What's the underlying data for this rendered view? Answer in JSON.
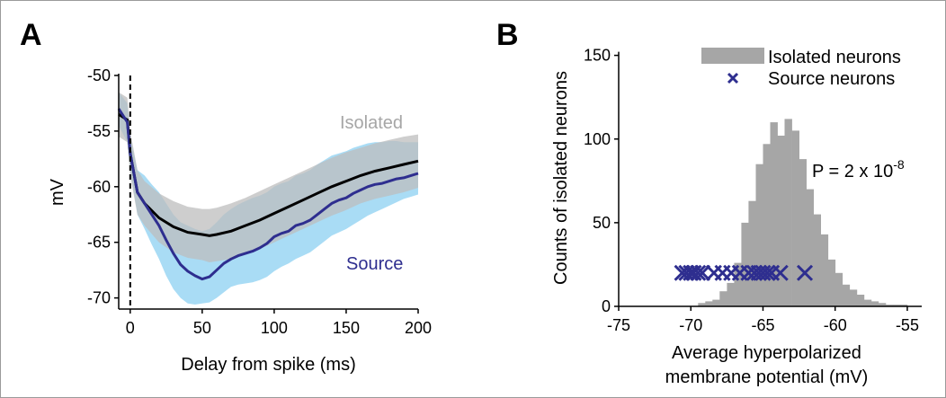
{
  "chart_data": [
    {
      "panel": "A",
      "type": "line",
      "xlabel": "Delay from spike (ms)",
      "ylabel": "mV",
      "xlim": [
        -8,
        200
      ],
      "ylim": [
        -71,
        -50
      ],
      "xticks": [
        0,
        50,
        100,
        150,
        200
      ],
      "yticks": [
        -50,
        -55,
        -60,
        -65,
        -70
      ],
      "spike_marker_x": 0,
      "series": [
        {
          "name": "Isolated",
          "color": "#000000",
          "band_color": "#bdbdbd",
          "x": [
            -8,
            -2,
            0,
            5,
            10,
            20,
            30,
            40,
            50,
            55,
            60,
            70,
            80,
            90,
            100,
            110,
            120,
            130,
            140,
            150,
            160,
            170,
            180,
            190,
            200
          ],
          "values": [
            -53.5,
            -54.0,
            -57.0,
            -60.5,
            -61.5,
            -62.8,
            -63.6,
            -64.1,
            -64.3,
            -64.4,
            -64.3,
            -64.0,
            -63.5,
            -63.0,
            -62.4,
            -61.8,
            -61.2,
            -60.6,
            -60.0,
            -59.5,
            -59.0,
            -58.6,
            -58.3,
            -58.0,
            -57.7
          ],
          "upper": [
            -51.5,
            -52.0,
            -55.0,
            -58.5,
            -59.5,
            -60.6,
            -61.3,
            -61.8,
            -62.0,
            -62.0,
            -61.9,
            -61.5,
            -61.0,
            -60.4,
            -59.8,
            -59.2,
            -58.6,
            -58.0,
            -57.4,
            -56.9,
            -56.5,
            -56.1,
            -55.8,
            -55.5,
            -55.3
          ],
          "lower": [
            -55.5,
            -56.0,
            -59.0,
            -62.5,
            -63.5,
            -65.0,
            -65.9,
            -66.4,
            -66.6,
            -66.8,
            -66.7,
            -66.5,
            -66.0,
            -65.6,
            -65.0,
            -64.4,
            -63.8,
            -63.2,
            -62.6,
            -62.1,
            -61.5,
            -61.1,
            -60.8,
            -60.5,
            -60.1
          ]
        },
        {
          "name": "Source",
          "color": "#2e2e8f",
          "band_color": "#a9dcf5",
          "x": [
            -8,
            -2,
            0,
            5,
            10,
            15,
            20,
            25,
            30,
            35,
            40,
            45,
            50,
            55,
            60,
            65,
            70,
            75,
            80,
            85,
            90,
            95,
            100,
            105,
            110,
            115,
            120,
            125,
            130,
            135,
            140,
            145,
            150,
            155,
            160,
            165,
            170,
            175,
            180,
            185,
            190,
            195,
            200
          ],
          "values": [
            -53.0,
            -54.2,
            -57.0,
            -60.5,
            -61.5,
            -62.5,
            -63.5,
            -64.8,
            -66.0,
            -67.0,
            -67.6,
            -68.0,
            -68.3,
            -68.1,
            -67.5,
            -66.9,
            -66.5,
            -66.2,
            -66.0,
            -65.8,
            -65.5,
            -65.1,
            -64.5,
            -64.2,
            -64.0,
            -63.5,
            -63.3,
            -63.0,
            -62.5,
            -62.0,
            -61.5,
            -61.2,
            -61.0,
            -60.6,
            -60.3,
            -60.0,
            -59.8,
            -59.7,
            -59.5,
            -59.3,
            -59.2,
            -59.0,
            -58.8
          ],
          "upper": [
            -51.5,
            -52.5,
            -55.5,
            -58.5,
            -59.0,
            -59.8,
            -60.5,
            -61.5,
            -62.5,
            -63.2,
            -63.5,
            -63.8,
            -64.0,
            -63.8,
            -63.2,
            -62.5,
            -62.0,
            -61.6,
            -61.3,
            -61.0,
            -60.8,
            -60.5,
            -60.0,
            -59.7,
            -59.5,
            -59.0,
            -58.8,
            -58.5,
            -58.0,
            -57.6,
            -57.2,
            -57.0,
            -56.8,
            -56.5,
            -56.3,
            -56.1,
            -56.0,
            -56.0,
            -55.9,
            -55.9,
            -56.0,
            -56.0,
            -56.0
          ],
          "lower": [
            -54.5,
            -56.0,
            -58.5,
            -62.5,
            -63.8,
            -65.2,
            -66.5,
            -68.0,
            -69.2,
            -70.0,
            -70.5,
            -70.6,
            -70.5,
            -70.4,
            -70.0,
            -69.5,
            -69.0,
            -68.8,
            -68.7,
            -68.6,
            -68.4,
            -68.1,
            -67.6,
            -67.2,
            -66.9,
            -66.5,
            -66.2,
            -65.9,
            -65.4,
            -64.9,
            -64.4,
            -64.1,
            -63.8,
            -63.4,
            -63.0,
            -62.6,
            -62.3,
            -62.0,
            -61.7,
            -61.4,
            -61.1,
            -60.9,
            -60.7
          ]
        }
      ],
      "annotations": [
        "Isolated",
        "Source"
      ]
    },
    {
      "panel": "B",
      "type": "bar",
      "xlabel": "Average hyperpolarized\nmembrane potential (mV)",
      "xlabel_lines": [
        "Average hyperpolarized",
        "membrane potential (mV)"
      ],
      "ylabel": "Counts of isolated neurons",
      "xlim": [
        -75,
        -54
      ],
      "ylim": [
        0,
        160
      ],
      "xticks": [
        -75,
        -70,
        -65,
        -60,
        -55
      ],
      "yticks": [
        0,
        50,
        100,
        150
      ],
      "legend_position": "top-right",
      "legend": [
        "Isolated neurons",
        "Source neurons"
      ],
      "histogram": {
        "name": "Isolated neurons",
        "color": "#a6a6a6",
        "bin_width": 0.5,
        "bin_starts": [
          -69.5,
          -69.0,
          -68.5,
          -68.0,
          -67.5,
          -67.0,
          -66.5,
          -66.0,
          -65.5,
          -65.0,
          -64.5,
          -64.0,
          -63.5,
          -63.0,
          -62.5,
          -62.0,
          -61.5,
          -61.0,
          -60.5,
          -60.0,
          -59.5,
          -59.0,
          -58.5,
          -58.0,
          -57.5,
          -57.0,
          -56.5,
          -56.0,
          -55.5
        ],
        "counts": [
          2,
          3,
          4,
          9,
          14,
          26,
          50,
          63,
          85,
          97,
          110,
          102,
          112,
          105,
          88,
          70,
          55,
          43,
          28,
          20,
          13,
          10,
          7,
          4,
          3,
          2,
          1,
          1,
          1
        ]
      },
      "markers": {
        "name": "Source neurons",
        "color": "#2e2e8f",
        "marker": "x",
        "y": 20,
        "x": [
          -70.6,
          -70.3,
          -70.0,
          -69.8,
          -69.5,
          -69.2,
          -68.4,
          -67.8,
          -67.2,
          -66.6,
          -66.0,
          -65.6,
          -65.3,
          -65.0,
          -64.7,
          -64.4,
          -63.8,
          -62.1
        ]
      },
      "annotation": {
        "text": "P = 2 x 10",
        "exponent": "-8"
      }
    }
  ]
}
